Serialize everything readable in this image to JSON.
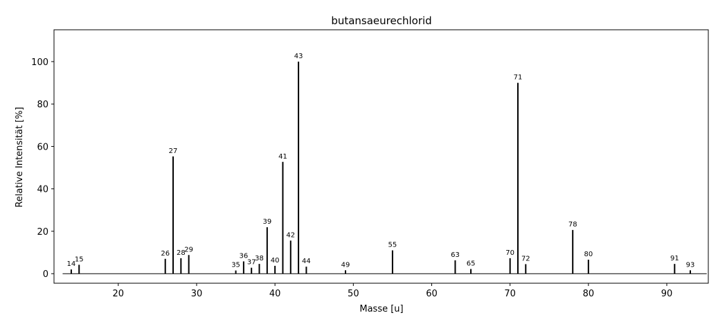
{
  "chart_data": {
    "type": "bar",
    "title": "butansaeurechlorid",
    "xlabel": "Masse [u]",
    "ylabel": "Relative Intensität [%]",
    "xlim": [
      11.8,
      95.3
    ],
    "ylim": [
      -4.5,
      115
    ],
    "xticks": [
      20,
      30,
      40,
      50,
      60,
      70,
      80,
      90
    ],
    "yticks": [
      0,
      20,
      40,
      60,
      80,
      100
    ],
    "grid": false,
    "peaks": [
      {
        "mass": 14,
        "intensity": 2.0,
        "label": "14"
      },
      {
        "mass": 15,
        "intensity": 4.2,
        "label": "15"
      },
      {
        "mass": 26,
        "intensity": 7.0,
        "label": "26"
      },
      {
        "mass": 27,
        "intensity": 55.3,
        "label": "27"
      },
      {
        "mass": 28,
        "intensity": 7.3,
        "label": "28"
      },
      {
        "mass": 29,
        "intensity": 8.8,
        "label": "29"
      },
      {
        "mass": 35,
        "intensity": 1.5,
        "label": "35"
      },
      {
        "mass": 36,
        "intensity": 5.8,
        "label": "36"
      },
      {
        "mass": 37,
        "intensity": 2.8,
        "label": "37"
      },
      {
        "mass": 38,
        "intensity": 4.6,
        "label": "38"
      },
      {
        "mass": 39,
        "intensity": 21.9,
        "label": "39"
      },
      {
        "mass": 40,
        "intensity": 3.7,
        "label": "40"
      },
      {
        "mass": 41,
        "intensity": 52.7,
        "label": "41"
      },
      {
        "mass": 42,
        "intensity": 15.6,
        "label": "42"
      },
      {
        "mass": 43,
        "intensity": 100.0,
        "label": "43"
      },
      {
        "mass": 44,
        "intensity": 3.3,
        "label": "44"
      },
      {
        "mass": 49,
        "intensity": 1.6,
        "label": "49"
      },
      {
        "mass": 55,
        "intensity": 11.0,
        "label": "55"
      },
      {
        "mass": 63,
        "intensity": 6.3,
        "label": "63"
      },
      {
        "mass": 65,
        "intensity": 2.2,
        "label": "65"
      },
      {
        "mass": 70,
        "intensity": 7.3,
        "label": "70"
      },
      {
        "mass": 71,
        "intensity": 90.0,
        "label": "71"
      },
      {
        "mass": 72,
        "intensity": 4.5,
        "label": "72"
      },
      {
        "mass": 78,
        "intensity": 20.6,
        "label": "78"
      },
      {
        "mass": 80,
        "intensity": 6.6,
        "label": "80"
      },
      {
        "mass": 91,
        "intensity": 4.6,
        "label": "91"
      },
      {
        "mass": 93,
        "intensity": 1.6,
        "label": "93"
      }
    ],
    "colors": {
      "bar": "#000000",
      "axis": "#000000",
      "background": "#ffffff"
    }
  }
}
